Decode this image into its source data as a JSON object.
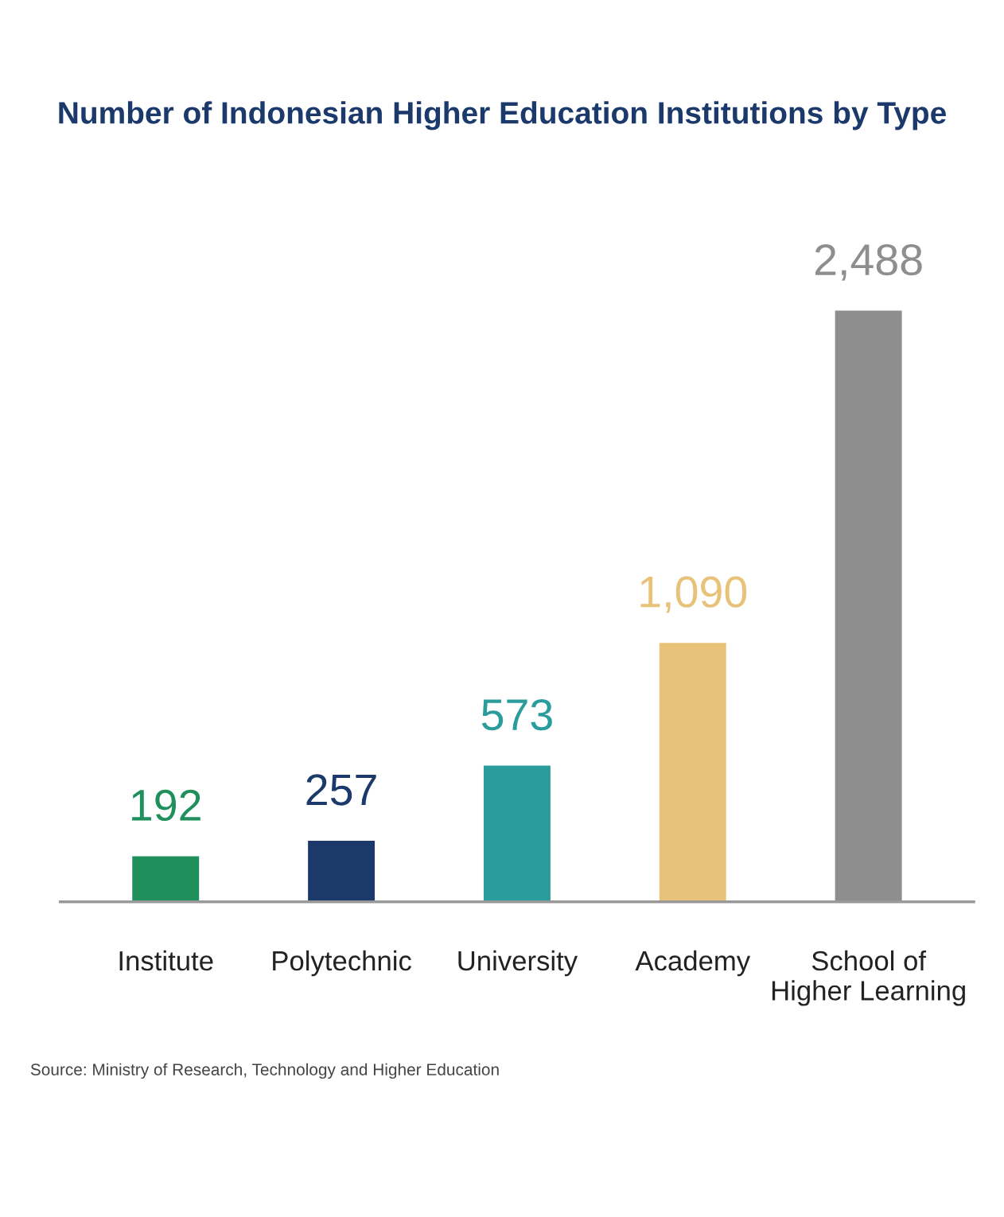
{
  "chart_data": {
    "type": "bar",
    "title": "Number of Indonesian Higher Education Institutions by Type",
    "categories": [
      "Institute",
      "Polytechnic",
      "University",
      "Academy",
      "School of\nHigher Learning"
    ],
    "values": [
      192,
      257,
      573,
      1090,
      2488
    ],
    "colors": [
      "#1f8f5c",
      "#1b3a6b",
      "#2b9c9c",
      "#e9c27a",
      "#8e8e8e"
    ],
    "value_labels": [
      "192",
      "257",
      "573",
      "1,090",
      "2,488"
    ],
    "tick_labels": "x",
    "grid": false,
    "legend": false,
    "annotations": [
      "Source: Ministry of Research, Technology and Higher Education"
    ]
  }
}
